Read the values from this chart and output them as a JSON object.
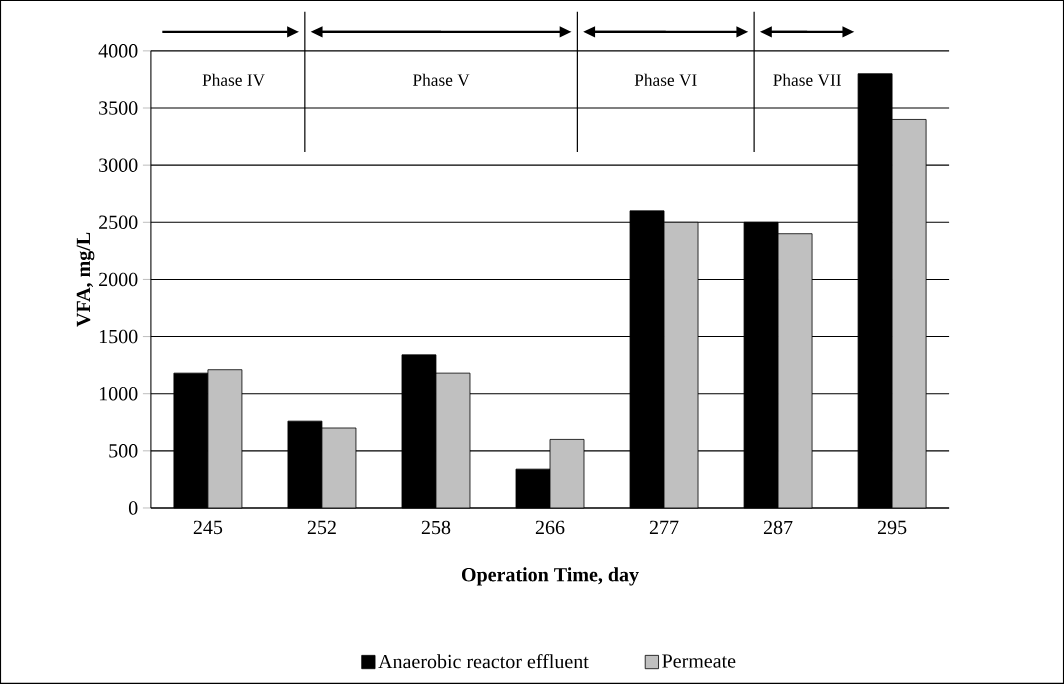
{
  "chart_data": {
    "type": "bar",
    "xlabel": "Operation Time, day",
    "ylabel": "VFA, mg/L",
    "categories": [
      "245",
      "252",
      "258",
      "266",
      "277",
      "287",
      "295"
    ],
    "series": [
      {
        "name": "Anaerobic reactor effluent",
        "color": "#000000",
        "values": [
          1180,
          760,
          1340,
          340,
          2600,
          2500,
          3800
        ]
      },
      {
        "name": "Permeate",
        "color": "#c0c0c0",
        "values": [
          1210,
          700,
          1180,
          600,
          2500,
          2400,
          3400
        ]
      }
    ],
    "ylim": [
      0,
      4000
    ],
    "yticks": [
      0,
      500,
      1000,
      1500,
      2000,
      2500,
      3000,
      3500,
      4000
    ],
    "grid": "y",
    "legend": "bottom",
    "annotations": [
      "Phase IV",
      "Phase V",
      "Phase VI",
      "Phase VII"
    ]
  }
}
